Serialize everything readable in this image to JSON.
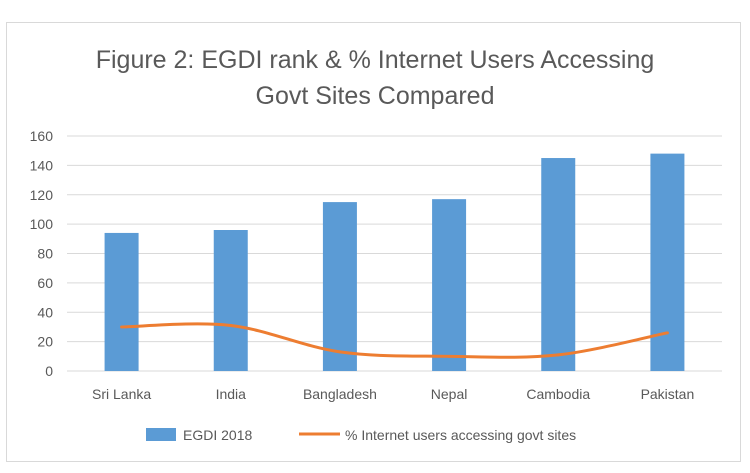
{
  "chart_data": {
    "type": "bar",
    "title_lines": [
      "Figure 2: EGDI rank & % Internet Users Accessing",
      "Govt Sites Compared"
    ],
    "categories": [
      "Sri Lanka",
      "India",
      "Bangladesh",
      "Nepal",
      "Cambodia",
      "Pakistan"
    ],
    "ylim": [
      0,
      160
    ],
    "yticks": [
      0,
      20,
      40,
      60,
      80,
      100,
      120,
      140,
      160
    ],
    "grid": true,
    "legend_position": "bottom",
    "series": [
      {
        "name": "EGDI 2018",
        "type": "bar",
        "color": "#5b9bd5",
        "values": [
          94,
          96,
          115,
          117,
          145,
          148
        ]
      },
      {
        "name": "% Internet users accessing govt sites",
        "type": "line",
        "color": "#ed7d31",
        "values": [
          30,
          31,
          13,
          10,
          11,
          26
        ]
      }
    ]
  }
}
